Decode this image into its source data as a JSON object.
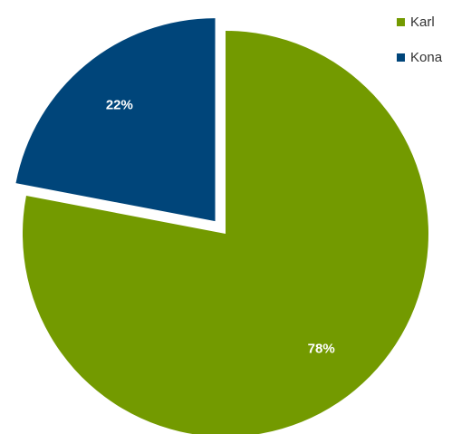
{
  "chart_data": {
    "type": "pie",
    "slices": [
      {
        "name": "Karl",
        "value": 78,
        "label": "78%",
        "color": "#739a00"
      },
      {
        "name": "Kona",
        "value": 22,
        "label": "22%",
        "color": "#00457a"
      }
    ],
    "exploded_slice": "Kona",
    "legend": {
      "position": "top-right",
      "items": [
        {
          "label": "Karl",
          "color": "#739a00"
        },
        {
          "label": "Kona",
          "color": "#00457a"
        }
      ]
    }
  }
}
